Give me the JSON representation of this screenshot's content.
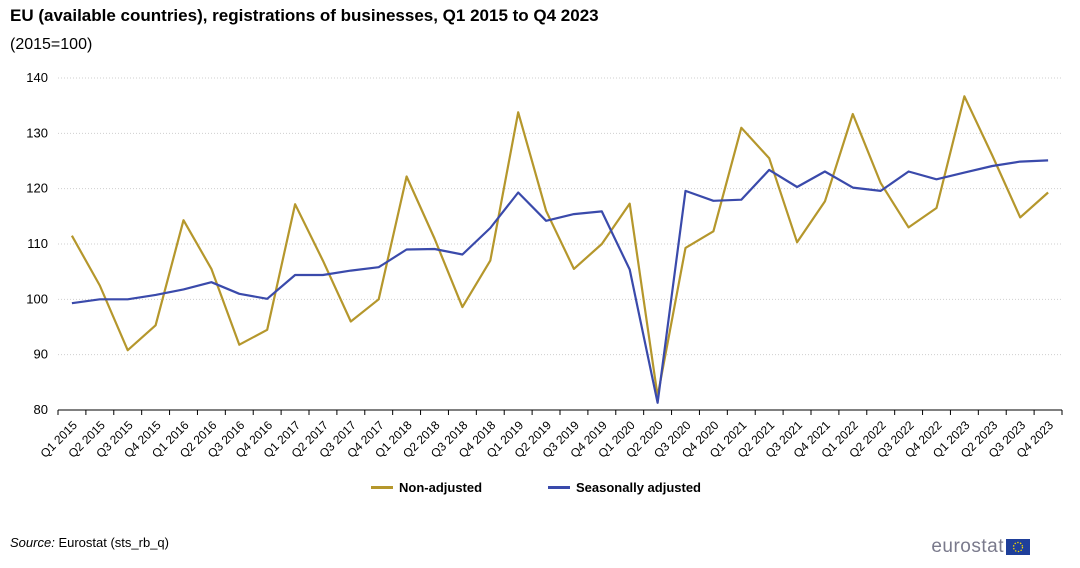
{
  "title": "EU (available countries), registrations of businesses, Q1 2015 to Q4 2023",
  "subtitle": "(2015=100)",
  "source_label": "Source:",
  "source_text": "Eurostat (sts_rb_q)",
  "logo_text": "eurostat",
  "chart_data": {
    "type": "line",
    "categories": [
      "Q1 2015",
      "Q2 2015",
      "Q3 2015",
      "Q4 2015",
      "Q1 2016",
      "Q2 2016",
      "Q3 2016",
      "Q4 2016",
      "Q1 2017",
      "Q2 2017",
      "Q3 2017",
      "Q4 2017",
      "Q1 2018",
      "Q2 2018",
      "Q3 2018",
      "Q4 2018",
      "Q1 2019",
      "Q2 2019",
      "Q3 2019",
      "Q4 2019",
      "Q1 2020",
      "Q2 2020",
      "Q3 2020",
      "Q4 2020",
      "Q1 2021",
      "Q2 2021",
      "Q3 2021",
      "Q4 2021",
      "Q1 2022",
      "Q2 2022",
      "Q3 2022",
      "Q4 2022",
      "Q1 2023",
      "Q2 2023",
      "Q3 2023",
      "Q4 2023"
    ],
    "series": [
      {
        "name": "Non-adjusted",
        "color": "#b5972c",
        "values": [
          111.5,
          102.5,
          90.8,
          95.3,
          114.3,
          105.5,
          91.8,
          94.5,
          117.2,
          107.0,
          96.0,
          100.0,
          122.2,
          111.0,
          98.6,
          107.0,
          133.8,
          116.0,
          105.5,
          110.0,
          117.3,
          82.5,
          109.3,
          112.3,
          131.0,
          125.5,
          110.3,
          117.7,
          133.5,
          121.0,
          113.0,
          116.5,
          136.7,
          126.0,
          114.8,
          119.3
        ]
      },
      {
        "name": "Seasonally adjusted",
        "color": "#3a4aab",
        "values": [
          99.3,
          100.0,
          100.0,
          100.8,
          101.8,
          103.1,
          101.0,
          100.1,
          104.4,
          104.4,
          105.2,
          105.8,
          109.0,
          109.1,
          108.1,
          112.9,
          119.3,
          114.2,
          115.4,
          115.9,
          105.4,
          81.3,
          119.6,
          117.8,
          118.0,
          123.4,
          120.3,
          123.1,
          120.2,
          119.6,
          123.1,
          121.7,
          122.9,
          124.1,
          124.9,
          125.1
        ]
      }
    ],
    "ylim": [
      80,
      140
    ],
    "yticks": [
      80,
      90,
      100,
      110,
      120,
      130,
      140
    ],
    "grid": true,
    "legend_position": "bottom-center"
  }
}
